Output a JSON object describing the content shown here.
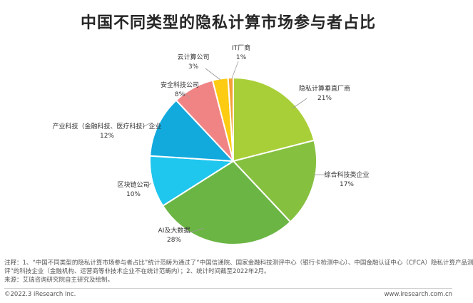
{
  "chart_data": {
    "type": "pie",
    "title": "中国不同类型的隐私计算市场参与者占比",
    "categories": [
      "隐私计算垂直厂商",
      "综合科技类企业",
      "AI及大数据",
      "区块链公司",
      "产业科技（金融科技、医疗科技）企业",
      "安全科技公司",
      "云计算公司",
      "IT厂商"
    ],
    "values": [
      21,
      17,
      28,
      10,
      12,
      8,
      3,
      1
    ],
    "value_labels": [
      "21%",
      "17%",
      "28%",
      "10%",
      "12%",
      "8%",
      "3%",
      "1%"
    ],
    "colors": [
      "#a9cf38",
      "#86c03f",
      "#6bb544",
      "#1fc6ee",
      "#12a9dd",
      "#f08484",
      "#fccb12",
      "#f2a134"
    ],
    "legend": "none"
  },
  "note": {
    "line1": "注释：1、“中国不同类型的隐私计算市场参与者占比”统计范畴为通过了“中国信通院、国家金融科技测评中心（银行卡检测中心）、中国金融认证中心（CFCA）隐私计算产品测",
    "line2": "评”的科技企业（金融机构、运营商等非技术企业不在统计范畴内）；2、统计时间截至2022年2月。",
    "line3": "来源：艾瑞咨询研究院自主研究及绘制。"
  },
  "footer": {
    "copyright": "©2022.3 iResearch Inc.",
    "website": "www.iresearch.com.cn"
  }
}
